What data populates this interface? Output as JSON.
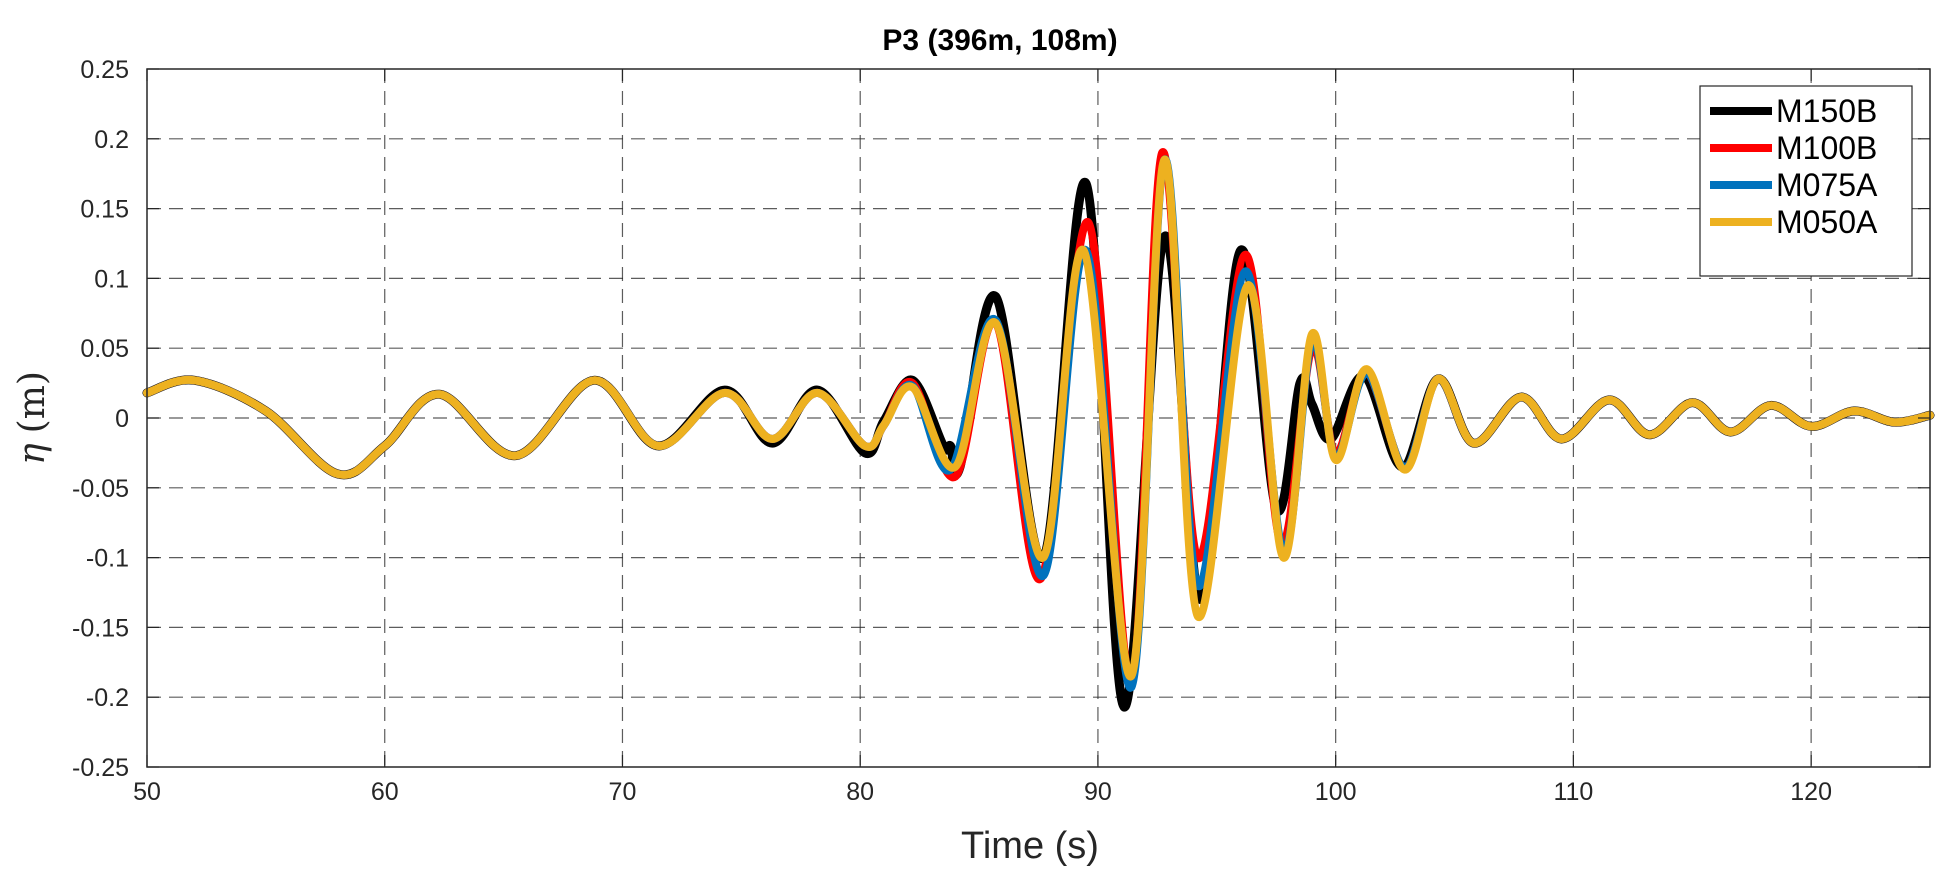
{
  "chart_data": {
    "type": "line",
    "title": "P3 (396m, 108m)",
    "xlabel": "Time (s)",
    "ylabel_symbol": "η",
    "ylabel_unit": "(m)",
    "xlim": [
      50,
      125
    ],
    "ylim": [
      -0.25,
      0.25
    ],
    "xticks": [
      50,
      60,
      70,
      80,
      90,
      100,
      110,
      120
    ],
    "xtick_labels": [
      "50",
      "60",
      "70",
      "80",
      "90",
      "100",
      "110",
      "120"
    ],
    "yticks": [
      0.25,
      0.2,
      0.15,
      0.1,
      0.05,
      0,
      -0.05,
      -0.1,
      -0.15,
      -0.2,
      -0.25
    ],
    "ytick_labels": [
      "0.25",
      "0.2",
      "0.15",
      "0.1",
      "0.05",
      "0",
      "-0.05",
      "-0.1",
      "-0.15",
      "-0.2",
      "-0.25"
    ],
    "grid": true,
    "legend_position": "top-right",
    "series": [
      {
        "name": "M150B",
        "color": "#000000",
        "x": [
          50,
          52,
          55,
          58,
          60,
          62.3,
          65.5,
          68.8,
          71.5,
          74.3,
          76.3,
          78.2,
          80.2,
          81,
          82.2,
          83.5,
          83.8,
          84.2,
          85.7,
          87.7,
          89.5,
          91.1,
          92.8,
          94.3,
          96,
          97.5,
          98.5,
          99,
          99.8,
          101.2,
          102.8,
          104.3,
          105.8,
          107.8,
          109.5,
          111.5,
          113.2,
          115,
          116.6,
          118.3,
          120,
          121.8,
          123.5,
          125
        ],
        "y": [
          0.018,
          0.027,
          0.005,
          -0.04,
          -0.02,
          0.017,
          -0.027,
          0.027,
          -0.02,
          0.02,
          -0.018,
          0.02,
          -0.025,
          -0.002,
          0.027,
          -0.02,
          -0.02,
          -0.035,
          0.087,
          -0.1,
          0.168,
          -0.207,
          0.13,
          -0.13,
          0.12,
          -0.065,
          0.025,
          0.01,
          -0.015,
          0.03,
          -0.035,
          0.028,
          -0.018,
          0.015,
          -0.015,
          0.013,
          -0.012,
          0.011,
          -0.01,
          0.009,
          -0.006,
          0.005,
          -0.003,
          0.002
        ]
      },
      {
        "name": "M100B",
        "color": "#ff0000",
        "x": [
          50,
          52,
          55,
          58,
          60,
          62.3,
          65.5,
          68.8,
          71.5,
          74.3,
          76.3,
          78.2,
          80.2,
          81,
          82.2,
          84,
          85.7,
          87.6,
          89.6,
          91.4,
          92.7,
          94.2,
          96.2,
          97.7,
          99,
          100,
          101.3,
          102.9,
          104.3,
          105.8,
          107.8,
          109.5,
          111.5,
          113.2,
          115,
          116.6,
          118.3,
          120,
          121.8,
          123.5,
          125
        ],
        "y": [
          0.018,
          0.027,
          0.005,
          -0.04,
          -0.02,
          0.017,
          -0.027,
          0.027,
          -0.02,
          0.018,
          -0.015,
          0.018,
          -0.02,
          -0.005,
          0.025,
          -0.042,
          0.068,
          -0.115,
          0.14,
          -0.19,
          0.19,
          -0.1,
          0.117,
          -0.09,
          0.05,
          -0.025,
          0.032,
          -0.035,
          0.028,
          -0.018,
          0.015,
          -0.015,
          0.013,
          -0.012,
          0.011,
          -0.01,
          0.009,
          -0.006,
          0.005,
          -0.003,
          0.002
        ]
      },
      {
        "name": "M075A",
        "color": "#0072bd",
        "x": [
          50,
          52,
          55,
          58,
          60,
          62.3,
          65.5,
          68.8,
          71.5,
          74.3,
          76.3,
          78.2,
          80.2,
          81,
          82.2,
          83.8,
          85.7,
          87.7,
          89.5,
          91.4,
          92.8,
          94.2,
          96.2,
          97.8,
          99,
          100,
          101.3,
          102.9,
          104.3,
          105.8,
          107.8,
          109.5,
          111.5,
          113.2,
          115,
          116.6,
          118.3,
          120,
          121.8,
          123.5,
          125
        ],
        "y": [
          0.018,
          0.027,
          0.005,
          -0.04,
          -0.02,
          0.017,
          -0.027,
          0.027,
          -0.02,
          0.018,
          -0.015,
          0.018,
          -0.02,
          -0.005,
          0.023,
          -0.037,
          0.07,
          -0.113,
          0.12,
          -0.193,
          0.185,
          -0.12,
          0.105,
          -0.095,
          0.055,
          -0.028,
          0.032,
          -0.035,
          0.028,
          -0.018,
          0.015,
          -0.015,
          0.013,
          -0.012,
          0.011,
          -0.01,
          0.009,
          -0.006,
          0.005,
          -0.003,
          0.002
        ]
      },
      {
        "name": "M050A",
        "color": "#edb120",
        "x": [
          50,
          52,
          55,
          58,
          60,
          62.3,
          65.5,
          68.8,
          71.5,
          74.3,
          76.3,
          78.2,
          80.2,
          81,
          82.2,
          84,
          85.7,
          87.7,
          89.4,
          91.4,
          92.8,
          94.2,
          96.3,
          97.8,
          99,
          100,
          101.3,
          102.9,
          104.3,
          105.8,
          107.8,
          109.5,
          111.5,
          113.2,
          115,
          116.6,
          118.3,
          120,
          121.8,
          123.5,
          125
        ],
        "y": [
          0.018,
          0.027,
          0.005,
          -0.04,
          -0.02,
          0.017,
          -0.027,
          0.027,
          -0.02,
          0.018,
          -0.015,
          0.018,
          -0.02,
          -0.005,
          0.022,
          -0.035,
          0.068,
          -0.1,
          0.12,
          -0.185,
          0.185,
          -0.142,
          0.095,
          -0.1,
          0.06,
          -0.03,
          0.035,
          -0.037,
          0.028,
          -0.018,
          0.015,
          -0.015,
          0.013,
          -0.012,
          0.011,
          -0.01,
          0.009,
          -0.006,
          0.005,
          -0.003,
          0.002
        ]
      }
    ]
  }
}
